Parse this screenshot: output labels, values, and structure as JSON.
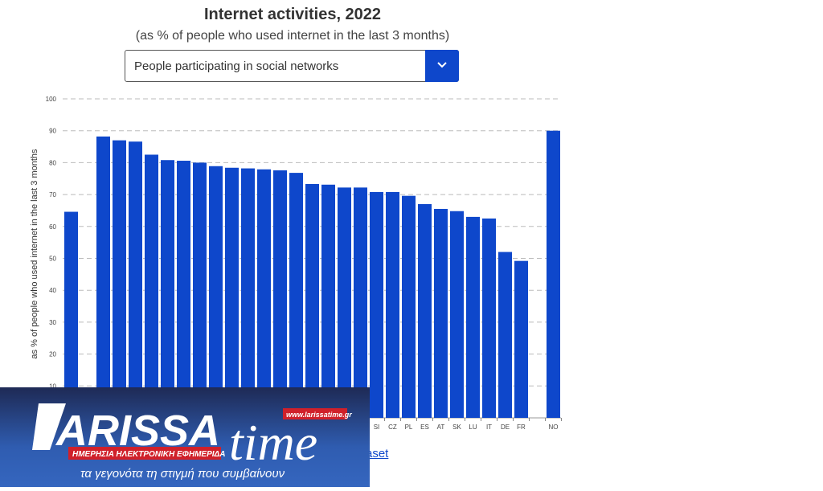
{
  "header": {
    "title": "Internet activities, 2022",
    "subtitle": "(as % of people who used internet in the last 3 months)"
  },
  "dropdown": {
    "selected": "People participating in social networks",
    "icon": "chevron-down-icon"
  },
  "link": {
    "text": "aset"
  },
  "logo": {
    "brand": "LARISSA time",
    "url": "www.larissatime.gr",
    "tagline_red": "ΗΜΕΡΗΣΙΑ ΗΛΕΚΤΡΟΝΙΚΗ ΕΦΗΜΕΡΙΔΑ",
    "tagline": "τα γεγονότα τη στιγμή που συμβαίνουν"
  },
  "chart_data": {
    "type": "bar",
    "title": "Internet activities, 2022",
    "subtitle": "(as % of people who used internet in the last 3 months)",
    "ylabel": "as % of people who used internet in the last 3 months",
    "ylim": [
      0,
      100
    ],
    "yticks": [
      10,
      20,
      30,
      40,
      50,
      60,
      70,
      80,
      90,
      100
    ],
    "grid": true,
    "bar_color": "#0e47cb",
    "categories": [
      "",
      "",
      "",
      "",
      "",
      "",
      "",
      "",
      "",
      "",
      "",
      "",
      "",
      "",
      "",
      "",
      "",
      "",
      "",
      "SI",
      "CZ",
      "PL",
      "ES",
      "AT",
      "SK",
      "LU",
      "IT",
      "DE",
      "FR",
      "",
      "NO"
    ],
    "values": [
      64.6,
      null,
      88.2,
      87.0,
      86.6,
      82.5,
      80.8,
      80.6,
      80.0,
      78.9,
      78.4,
      78.2,
      77.9,
      77.6,
      76.8,
      73.3,
      73.1,
      72.2,
      72.2,
      70.8,
      70.8,
      69.6,
      67.0,
      65.5,
      64.8,
      63.0,
      62.5,
      52.0,
      49.2,
      null,
      90.0
    ]
  }
}
